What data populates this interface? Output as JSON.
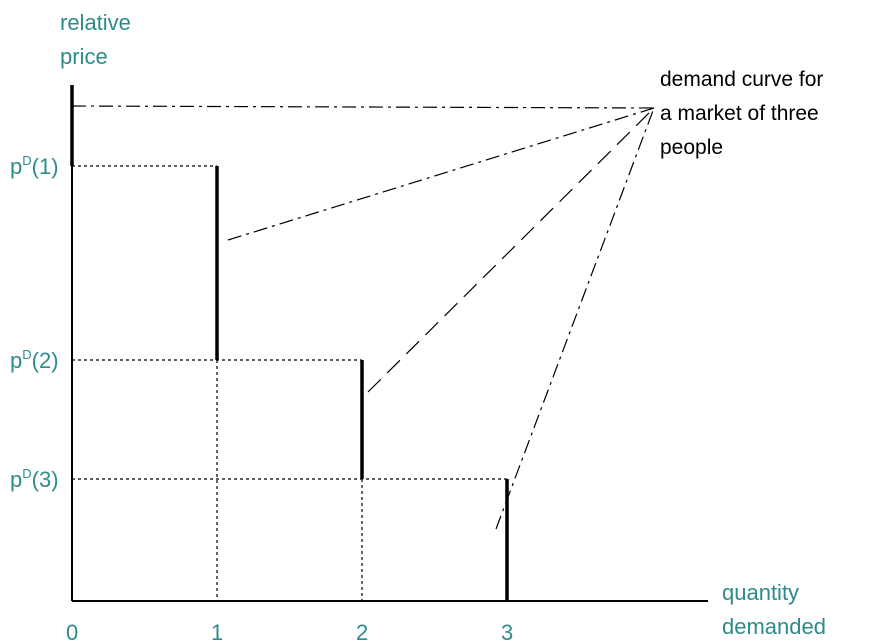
{
  "chart_data": {
    "type": "line",
    "description_kind": "step demand curve",
    "ylabel": "relative price",
    "xlabel": "quantity demanded",
    "x_ticks": [
      "0",
      "1",
      "2",
      "3"
    ],
    "y_ticks": [
      {
        "base": "p",
        "sup": "D",
        "arg": "(1)"
      },
      {
        "base": "p",
        "sup": "D",
        "arg": "(2)"
      },
      {
        "base": "p",
        "sup": "D",
        "arg": "(3)"
      }
    ],
    "steps": [
      {
        "quantity": 1,
        "price_level": 1
      },
      {
        "quantity": 2,
        "price_level": 2
      },
      {
        "quantity": 3,
        "price_level": 3
      }
    ],
    "annotation_lines": [
      "demand curve for",
      "a market of three",
      "people"
    ],
    "colors": {
      "axis_labels": "#2e8b8b",
      "annotation": "#000000",
      "lines": "#000000"
    }
  }
}
